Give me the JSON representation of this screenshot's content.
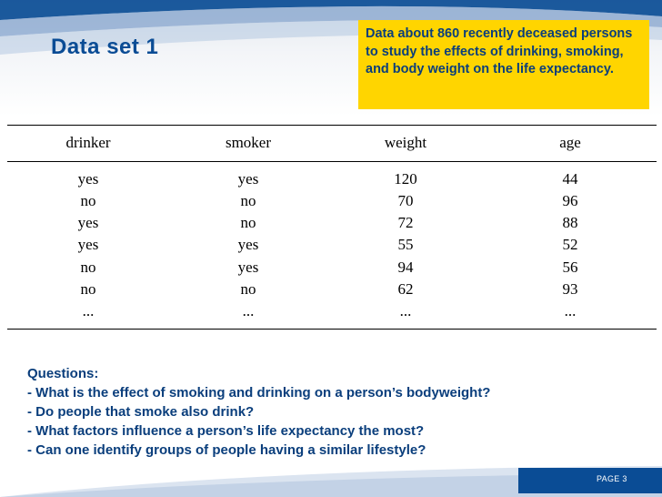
{
  "slide": {
    "title": "Data set 1",
    "callout": "Data about 860 recently deceased persons to study the effects of drinking, smoking, and body weight on the life expectancy.",
    "page_label": "PAGE 3",
    "colors": {
      "accent": "#0a4c95",
      "callout_bg": "#ffd500",
      "text_dark_blue": "#0a3e7c"
    }
  },
  "table": {
    "headers": [
      "drinker",
      "smoker",
      "weight",
      "age"
    ],
    "rows": [
      [
        "yes",
        "yes",
        "120",
        "44"
      ],
      [
        "no",
        "no",
        "70",
        "96"
      ],
      [
        "yes",
        "no",
        "72",
        "88"
      ],
      [
        "yes",
        "yes",
        "55",
        "52"
      ],
      [
        "no",
        "yes",
        "94",
        "56"
      ],
      [
        "no",
        "no",
        "62",
        "93"
      ],
      [
        "...",
        "...",
        "...",
        "..."
      ]
    ]
  },
  "questions": {
    "heading": "Questions:",
    "items": [
      "- What is the effect of smoking and drinking on a person’s bodyweight?",
      "- Do people that smoke also drink?",
      "- What factors influence a person’s life expectancy the most?",
      "- Can one identify groups of people having a similar lifestyle?"
    ]
  }
}
